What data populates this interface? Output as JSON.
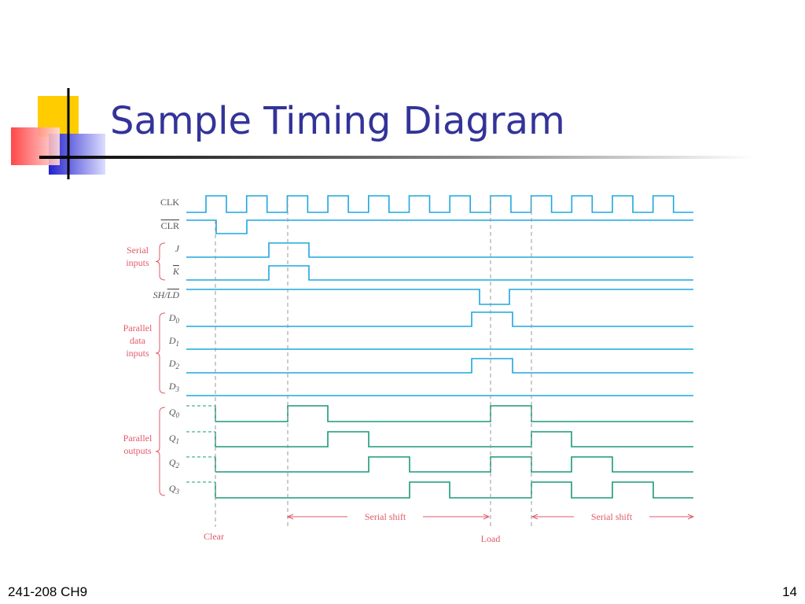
{
  "header": {
    "title": "Sample Timing Diagram"
  },
  "footer": {
    "left": "241-208 CH9",
    "page": "14"
  },
  "signals": [
    {
      "name": "CLK"
    },
    {
      "name_bar": "CLR"
    },
    {
      "name": "J"
    },
    {
      "name_bar": "K"
    },
    {
      "name": "SH/",
      "name_bar": "LD"
    },
    {
      "name": "D",
      "sub": "0"
    },
    {
      "name": "D",
      "sub": "1"
    },
    {
      "name": "D",
      "sub": "2"
    },
    {
      "name": "D",
      "sub": "3"
    },
    {
      "name": "Q",
      "sub": "0"
    },
    {
      "name": "Q",
      "sub": "1"
    },
    {
      "name": "Q",
      "sub": "2"
    },
    {
      "name": "Q",
      "sub": "3"
    }
  ],
  "groups": [
    {
      "lines": [
        "Serial",
        "inputs"
      ]
    },
    {
      "lines": [
        "Parallel",
        "data",
        "inputs"
      ]
    },
    {
      "lines": [
        "Parallel",
        "outputs"
      ]
    }
  ],
  "annotations": {
    "shift_1": "Serial shift",
    "shift_2": "Serial shift",
    "clear": "Clear",
    "load": "Load"
  }
}
